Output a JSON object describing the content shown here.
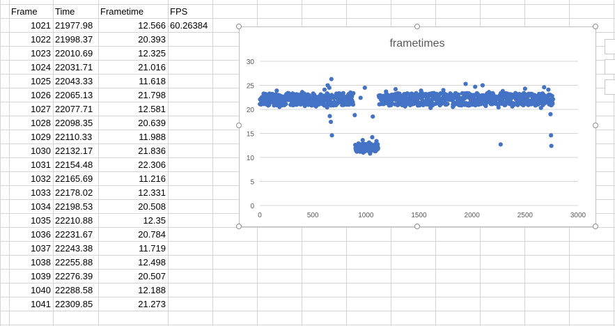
{
  "sheet": {
    "headers": [
      "Frame",
      "Time",
      "Frametime",
      "FPS"
    ],
    "fps_value": "60.26384",
    "rows": [
      [
        "1021",
        "21977.98",
        "12.566"
      ],
      [
        "1022",
        "21998.37",
        "20.393"
      ],
      [
        "1023",
        "22010.69",
        "12.325"
      ],
      [
        "1024",
        "22031.71",
        "21.016"
      ],
      [
        "1025",
        "22043.33",
        "11.618"
      ],
      [
        "1026",
        "22065.13",
        "21.798"
      ],
      [
        "1027",
        "22077.71",
        "12.581"
      ],
      [
        "1028",
        "22098.35",
        "20.639"
      ],
      [
        "1029",
        "22110.33",
        "11.988"
      ],
      [
        "1030",
        "22132.17",
        "21.836"
      ],
      [
        "1031",
        "22154.48",
        "22.306"
      ],
      [
        "1032",
        "22165.69",
        "11.216"
      ],
      [
        "1033",
        "22178.02",
        "12.331"
      ],
      [
        "1034",
        "22198.53",
        "20.508"
      ],
      [
        "1035",
        "22210.88",
        "12.35"
      ],
      [
        "1036",
        "22231.67",
        "20.784"
      ],
      [
        "1037",
        "22243.38",
        "11.719"
      ],
      [
        "1038",
        "22255.88",
        "12.498"
      ],
      [
        "1039",
        "22276.39",
        "20.507"
      ],
      [
        "1040",
        "22288.58",
        "12.188"
      ],
      [
        "1041",
        "22309.85",
        "21.273"
      ]
    ]
  },
  "colors": {
    "gridline": "#d4d4d4",
    "series": "#4472c4",
    "axis_text": "#595959",
    "title_text": "#595959"
  },
  "chart_data": {
    "type": "scatter",
    "title": "frametimes",
    "xlim": [
      0,
      3000
    ],
    "ylim": [
      0,
      30
    ],
    "xticks": [
      "0",
      "500",
      "1000",
      "1500",
      "2000",
      "2500",
      "3000"
    ],
    "yticks": [
      "0",
      "5",
      "10",
      "15",
      "20",
      "25",
      "30"
    ],
    "grid": true,
    "legend": "none",
    "series": [
      {
        "points": [
          [
            10,
            22.1
          ],
          [
            30,
            21.4
          ],
          [
            55,
            23.2
          ],
          [
            80,
            20.8
          ],
          [
            105,
            22.6
          ],
          [
            130,
            21.9
          ],
          [
            160,
            23.9
          ],
          [
            185,
            20.5
          ],
          [
            210,
            22.3
          ],
          [
            240,
            21.2
          ],
          [
            265,
            23.4
          ],
          [
            290,
            22.0
          ],
          [
            320,
            20.9
          ],
          [
            345,
            22.8
          ],
          [
            370,
            21.5
          ],
          [
            400,
            23.6
          ],
          [
            425,
            20.7
          ],
          [
            450,
            22.4
          ],
          [
            480,
            21.8
          ],
          [
            505,
            23.1
          ],
          [
            530,
            20.6
          ],
          [
            560,
            22.7
          ],
          [
            585,
            21.3
          ],
          [
            610,
            24.1
          ],
          [
            635,
            20.4
          ],
          [
            640,
            25.0
          ],
          [
            655,
            24.5
          ],
          [
            660,
            18.6
          ],
          [
            670,
            17.4
          ],
          [
            675,
            26.3
          ],
          [
            680,
            14.6
          ],
          [
            700,
            22.5
          ],
          [
            725,
            21.1
          ],
          [
            750,
            23.3
          ],
          [
            775,
            20.9
          ],
          [
            800,
            22.2
          ],
          [
            830,
            21.6
          ],
          [
            855,
            23.5
          ],
          [
            880,
            21.0
          ],
          [
            895,
            18.8
          ],
          [
            900,
            12.6
          ],
          [
            915,
            11.2
          ],
          [
            930,
            12.9
          ],
          [
            945,
            11.6
          ],
          [
            950,
            22.4
          ],
          [
            960,
            12.2
          ],
          [
            970,
            13.6
          ],
          [
            975,
            11.0
          ],
          [
            985,
            12.8
          ],
          [
            990,
            24.5
          ],
          [
            1000,
            11.4
          ],
          [
            1010,
            12.5
          ],
          [
            1020,
            11.9
          ],
          [
            1030,
            13.1
          ],
          [
            1040,
            10.8
          ],
          [
            1050,
            12.3
          ],
          [
            1060,
            14.2
          ],
          [
            1065,
            18.5
          ],
          [
            1070,
            11.5
          ],
          [
            1085,
            12.7
          ],
          [
            1100,
            13.4
          ],
          [
            1115,
            12.0
          ],
          [
            1130,
            22.9
          ],
          [
            1160,
            21.2
          ],
          [
            1190,
            23.7
          ],
          [
            1220,
            20.8
          ],
          [
            1250,
            22.1
          ],
          [
            1280,
            24.2
          ],
          [
            1310,
            21.4
          ],
          [
            1340,
            22.8
          ],
          [
            1370,
            20.6
          ],
          [
            1400,
            23.2
          ],
          [
            1430,
            21.9
          ],
          [
            1460,
            22.5
          ],
          [
            1490,
            20.9
          ],
          [
            1520,
            23.9
          ],
          [
            1550,
            21.3
          ],
          [
            1580,
            22.6
          ],
          [
            1610,
            20.3
          ],
          [
            1640,
            23.4
          ],
          [
            1670,
            21.7
          ],
          [
            1700,
            22.2
          ],
          [
            1730,
            24.0
          ],
          [
            1760,
            21.0
          ],
          [
            1790,
            22.7
          ],
          [
            1820,
            20.5
          ],
          [
            1850,
            23.3
          ],
          [
            1880,
            21.6
          ],
          [
            1910,
            22.4
          ],
          [
            1940,
            25.3
          ],
          [
            1970,
            20.8
          ],
          [
            2000,
            23.0
          ],
          [
            2030,
            24.7
          ],
          [
            2060,
            21.5
          ],
          [
            2090,
            22.3
          ],
          [
            2100,
            25.0
          ],
          [
            2130,
            20.7
          ],
          [
            2160,
            23.6
          ],
          [
            2190,
            21.9
          ],
          [
            2220,
            22.5
          ],
          [
            2250,
            20.4
          ],
          [
            2270,
            12.7
          ],
          [
            2290,
            23.8
          ],
          [
            2320,
            21.3
          ],
          [
            2350,
            22.9
          ],
          [
            2380,
            20.6
          ],
          [
            2410,
            23.4
          ],
          [
            2440,
            21.8
          ],
          [
            2470,
            22.2
          ],
          [
            2500,
            24.3
          ],
          [
            2530,
            20.9
          ],
          [
            2560,
            23.1
          ],
          [
            2590,
            21.4
          ],
          [
            2620,
            22.7
          ],
          [
            2650,
            20.3
          ],
          [
            2680,
            24.6
          ],
          [
            2700,
            22.0
          ],
          [
            2720,
            24.1
          ],
          [
            2740,
            19.0
          ],
          [
            2745,
            14.6
          ],
          [
            2748,
            12.4
          ],
          [
            2755,
            22.8
          ]
        ]
      }
    ]
  }
}
